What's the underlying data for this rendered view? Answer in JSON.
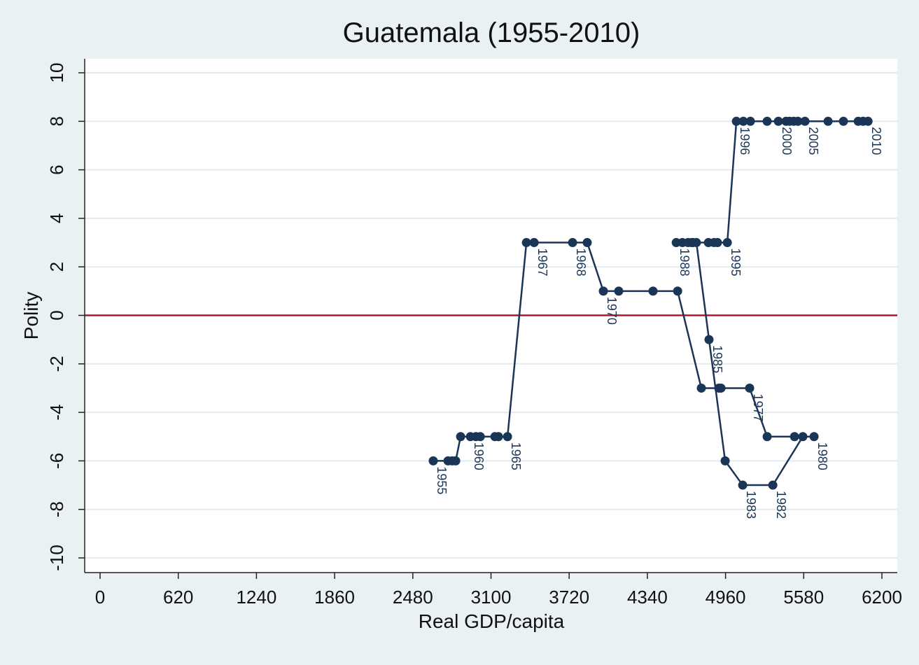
{
  "chart_data": {
    "type": "line",
    "title": "Guatemala (1955-2010)",
    "xlabel": "Real GDP/capita",
    "ylabel": "Polity",
    "xlim": [
      0,
      6200
    ],
    "ylim": [
      -10,
      10
    ],
    "xticks": [
      0,
      620,
      1240,
      1860,
      2480,
      3100,
      3720,
      4340,
      4960,
      5580,
      6200
    ],
    "yticks": [
      -10,
      -8,
      -6,
      -4,
      -2,
      0,
      2,
      4,
      6,
      8,
      10
    ],
    "reference_line_y": 0,
    "grid": true,
    "colors": {
      "series": "#1a3556",
      "reference": "#b0172b",
      "grid": "#e2ebee",
      "background": "#eaf1f3"
    },
    "points": [
      {
        "year": 1955,
        "gdp": 2642,
        "polity": -6,
        "label": "1955"
      },
      {
        "year": 1956,
        "gdp": 2759,
        "polity": -6
      },
      {
        "year": 1957,
        "gdp": 2792,
        "polity": -6
      },
      {
        "year": 1958,
        "gdp": 2820,
        "polity": -6
      },
      {
        "year": 1959,
        "gdp": 2859,
        "polity": -5
      },
      {
        "year": 1960,
        "gdp": 2937,
        "polity": -5,
        "label": "1960"
      },
      {
        "year": 1961,
        "gdp": 2981,
        "polity": -5
      },
      {
        "year": 1962,
        "gdp": 3015,
        "polity": -5
      },
      {
        "year": 1963,
        "gdp": 3131,
        "polity": -5
      },
      {
        "year": 1964,
        "gdp": 3159,
        "polity": -5
      },
      {
        "year": 1965,
        "gdp": 3231,
        "polity": -5,
        "label": "1965"
      },
      {
        "year": 1966,
        "gdp": 3381,
        "polity": 3
      },
      {
        "year": 1967,
        "gdp": 3442,
        "polity": 3,
        "label": "1967"
      },
      {
        "year": 1968,
        "gdp": 3747,
        "polity": 3,
        "label": "1968"
      },
      {
        "year": 1969,
        "gdp": 3863,
        "polity": 3
      },
      {
        "year": 1970,
        "gdp": 3991,
        "polity": 1,
        "label": "1970"
      },
      {
        "year": 1971,
        "gdp": 4113,
        "polity": 1
      },
      {
        "year": 1972,
        "gdp": 4385,
        "polity": 1
      },
      {
        "year": 1973,
        "gdp": 4580,
        "polity": 1
      },
      {
        "year": 1974,
        "gdp": 4768,
        "polity": -3
      },
      {
        "year": 1975,
        "gdp": 4907,
        "polity": -3
      },
      {
        "year": 1976,
        "gdp": 4924,
        "polity": -3
      },
      {
        "year": 1977,
        "gdp": 5151,
        "polity": -3,
        "label": "1977"
      },
      {
        "year": 1978,
        "gdp": 5290,
        "polity": -5
      },
      {
        "year": 1979,
        "gdp": 5507,
        "polity": -5
      },
      {
        "year": 1980,
        "gdp": 5662,
        "polity": -5,
        "label": "1980"
      },
      {
        "year": 1981,
        "gdp": 5573,
        "polity": -5
      },
      {
        "year": 1982,
        "gdp": 5335,
        "polity": -7,
        "label": "1982"
      },
      {
        "year": 1983,
        "gdp": 5096,
        "polity": -7,
        "label": "1983"
      },
      {
        "year": 1984,
        "gdp": 4957,
        "polity": -6
      },
      {
        "year": 1985,
        "gdp": 4829,
        "polity": -1,
        "label": "1985"
      },
      {
        "year": 1986,
        "gdp": 4729,
        "polity": 3
      },
      {
        "year": 1987,
        "gdp": 4702,
        "polity": 3
      },
      {
        "year": 1988,
        "gdp": 4569,
        "polity": 3,
        "label": "1988"
      },
      {
        "year": 1989,
        "gdp": 4618,
        "polity": 3
      },
      {
        "year": 1990,
        "gdp": 4663,
        "polity": 3
      },
      {
        "year": 1991,
        "gdp": 4691,
        "polity": 3
      },
      {
        "year": 1992,
        "gdp": 4824,
        "polity": 3
      },
      {
        "year": 1993,
        "gdp": 4868,
        "polity": 3
      },
      {
        "year": 1994,
        "gdp": 4896,
        "polity": 3
      },
      {
        "year": 1995,
        "gdp": 4974,
        "polity": 3,
        "label": "1995"
      },
      {
        "year": 1996,
        "gdp": 5046,
        "polity": 8,
        "label": "1996"
      },
      {
        "year": 1997,
        "gdp": 5101,
        "polity": 8
      },
      {
        "year": 1998,
        "gdp": 5157,
        "polity": 8
      },
      {
        "year": 1999,
        "gdp": 5290,
        "polity": 8
      },
      {
        "year": 2000,
        "gdp": 5379,
        "polity": 8,
        "label": "2000"
      },
      {
        "year": 2001,
        "gdp": 5440,
        "polity": 8
      },
      {
        "year": 2002,
        "gdp": 5468,
        "polity": 8
      },
      {
        "year": 2003,
        "gdp": 5501,
        "polity": 8
      },
      {
        "year": 2004,
        "gdp": 5534,
        "polity": 8
      },
      {
        "year": 2005,
        "gdp": 5590,
        "polity": 8,
        "label": "2005"
      },
      {
        "year": 2006,
        "gdp": 5773,
        "polity": 8
      },
      {
        "year": 2007,
        "gdp": 5895,
        "polity": 8
      },
      {
        "year": 2008,
        "gdp": 6012,
        "polity": 8
      },
      {
        "year": 2009,
        "gdp": 6051,
        "polity": 8
      },
      {
        "year": 2010,
        "gdp": 6090,
        "polity": 8,
        "label": "2010"
      }
    ]
  }
}
